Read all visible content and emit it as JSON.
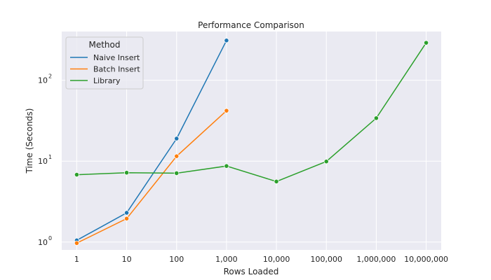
{
  "chart_data": {
    "type": "line",
    "title": "Performance Comparison",
    "xlabel": "Rows Loaded",
    "ylabel": "Time (Seconds)",
    "x": [
      1,
      10,
      100,
      1000,
      10000,
      100000,
      1000000,
      10000000
    ],
    "x_tick_labels": [
      "1",
      "10",
      "100",
      "1,000",
      "10,000",
      "100,000",
      "1,000,000",
      "10,000,000"
    ],
    "x_scale": "log",
    "y_scale": "log",
    "xlim": [
      0.5,
      20000000
    ],
    "ylim": [
      0.8,
      400
    ],
    "y_ticks": [
      {
        "base": "10",
        "exp": "0",
        "value": 1
      },
      {
        "base": "10",
        "exp": "1",
        "value": 10
      },
      {
        "base": "10",
        "exp": "2",
        "value": 100
      }
    ],
    "grid": true,
    "legend": {
      "title": "Method",
      "placement": "top-left"
    },
    "series": [
      {
        "name": "Naive Insert",
        "color": "#1f77b4",
        "x": [
          1,
          10,
          100,
          1000
        ],
        "values": [
          1.05,
          2.3,
          19,
          310
        ]
      },
      {
        "name": "Batch Insert",
        "color": "#ff7f0e",
        "x": [
          1,
          10,
          100,
          1000
        ],
        "values": [
          0.97,
          1.95,
          11.5,
          42
        ]
      },
      {
        "name": "Library",
        "color": "#2ca02c",
        "x": [
          1,
          10,
          100,
          1000,
          10000,
          100000,
          1000000,
          10000000
        ],
        "values": [
          6.8,
          7.2,
          7.1,
          8.7,
          5.6,
          9.9,
          34,
          290
        ]
      }
    ]
  }
}
